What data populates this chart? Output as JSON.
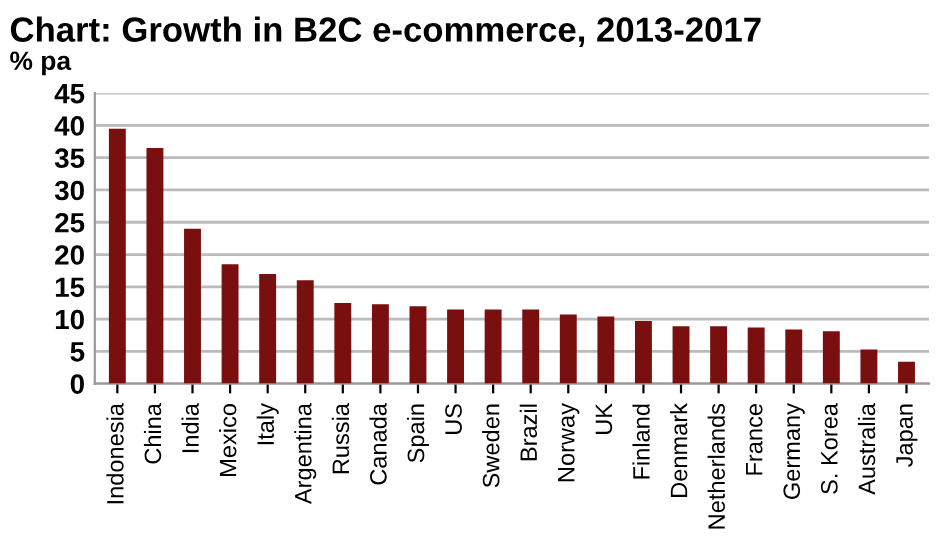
{
  "chart_data": {
    "type": "bar",
    "title": "Chart: Growth in B2C e-commerce, 2013-2017",
    "ylabel": "% pa",
    "categories": [
      "Indonesia",
      "China",
      "India",
      "Mexico",
      "Italy",
      "Argentina",
      "Russia",
      "Canada",
      "Spain",
      "US",
      "Sweden",
      "Brazil",
      "Norway",
      "UK",
      "Finland",
      "Denmark",
      "Netherlands",
      "France",
      "Germany",
      "S. Korea",
      "Australia",
      "Japan"
    ],
    "values": [
      39.5,
      36.5,
      24,
      18.5,
      17,
      16,
      12.5,
      12.3,
      12,
      11.5,
      11.5,
      11.5,
      10.7,
      10.4,
      9.7,
      8.9,
      8.9,
      8.7,
      8.4,
      8.1,
      5.3,
      3.4
    ],
    "color": "#7a0f10",
    "ylim": [
      0,
      45
    ],
    "yticks": [
      0,
      5,
      10,
      15,
      20,
      25,
      30,
      35,
      40,
      45
    ],
    "grid": "y",
    "legend": false
  }
}
